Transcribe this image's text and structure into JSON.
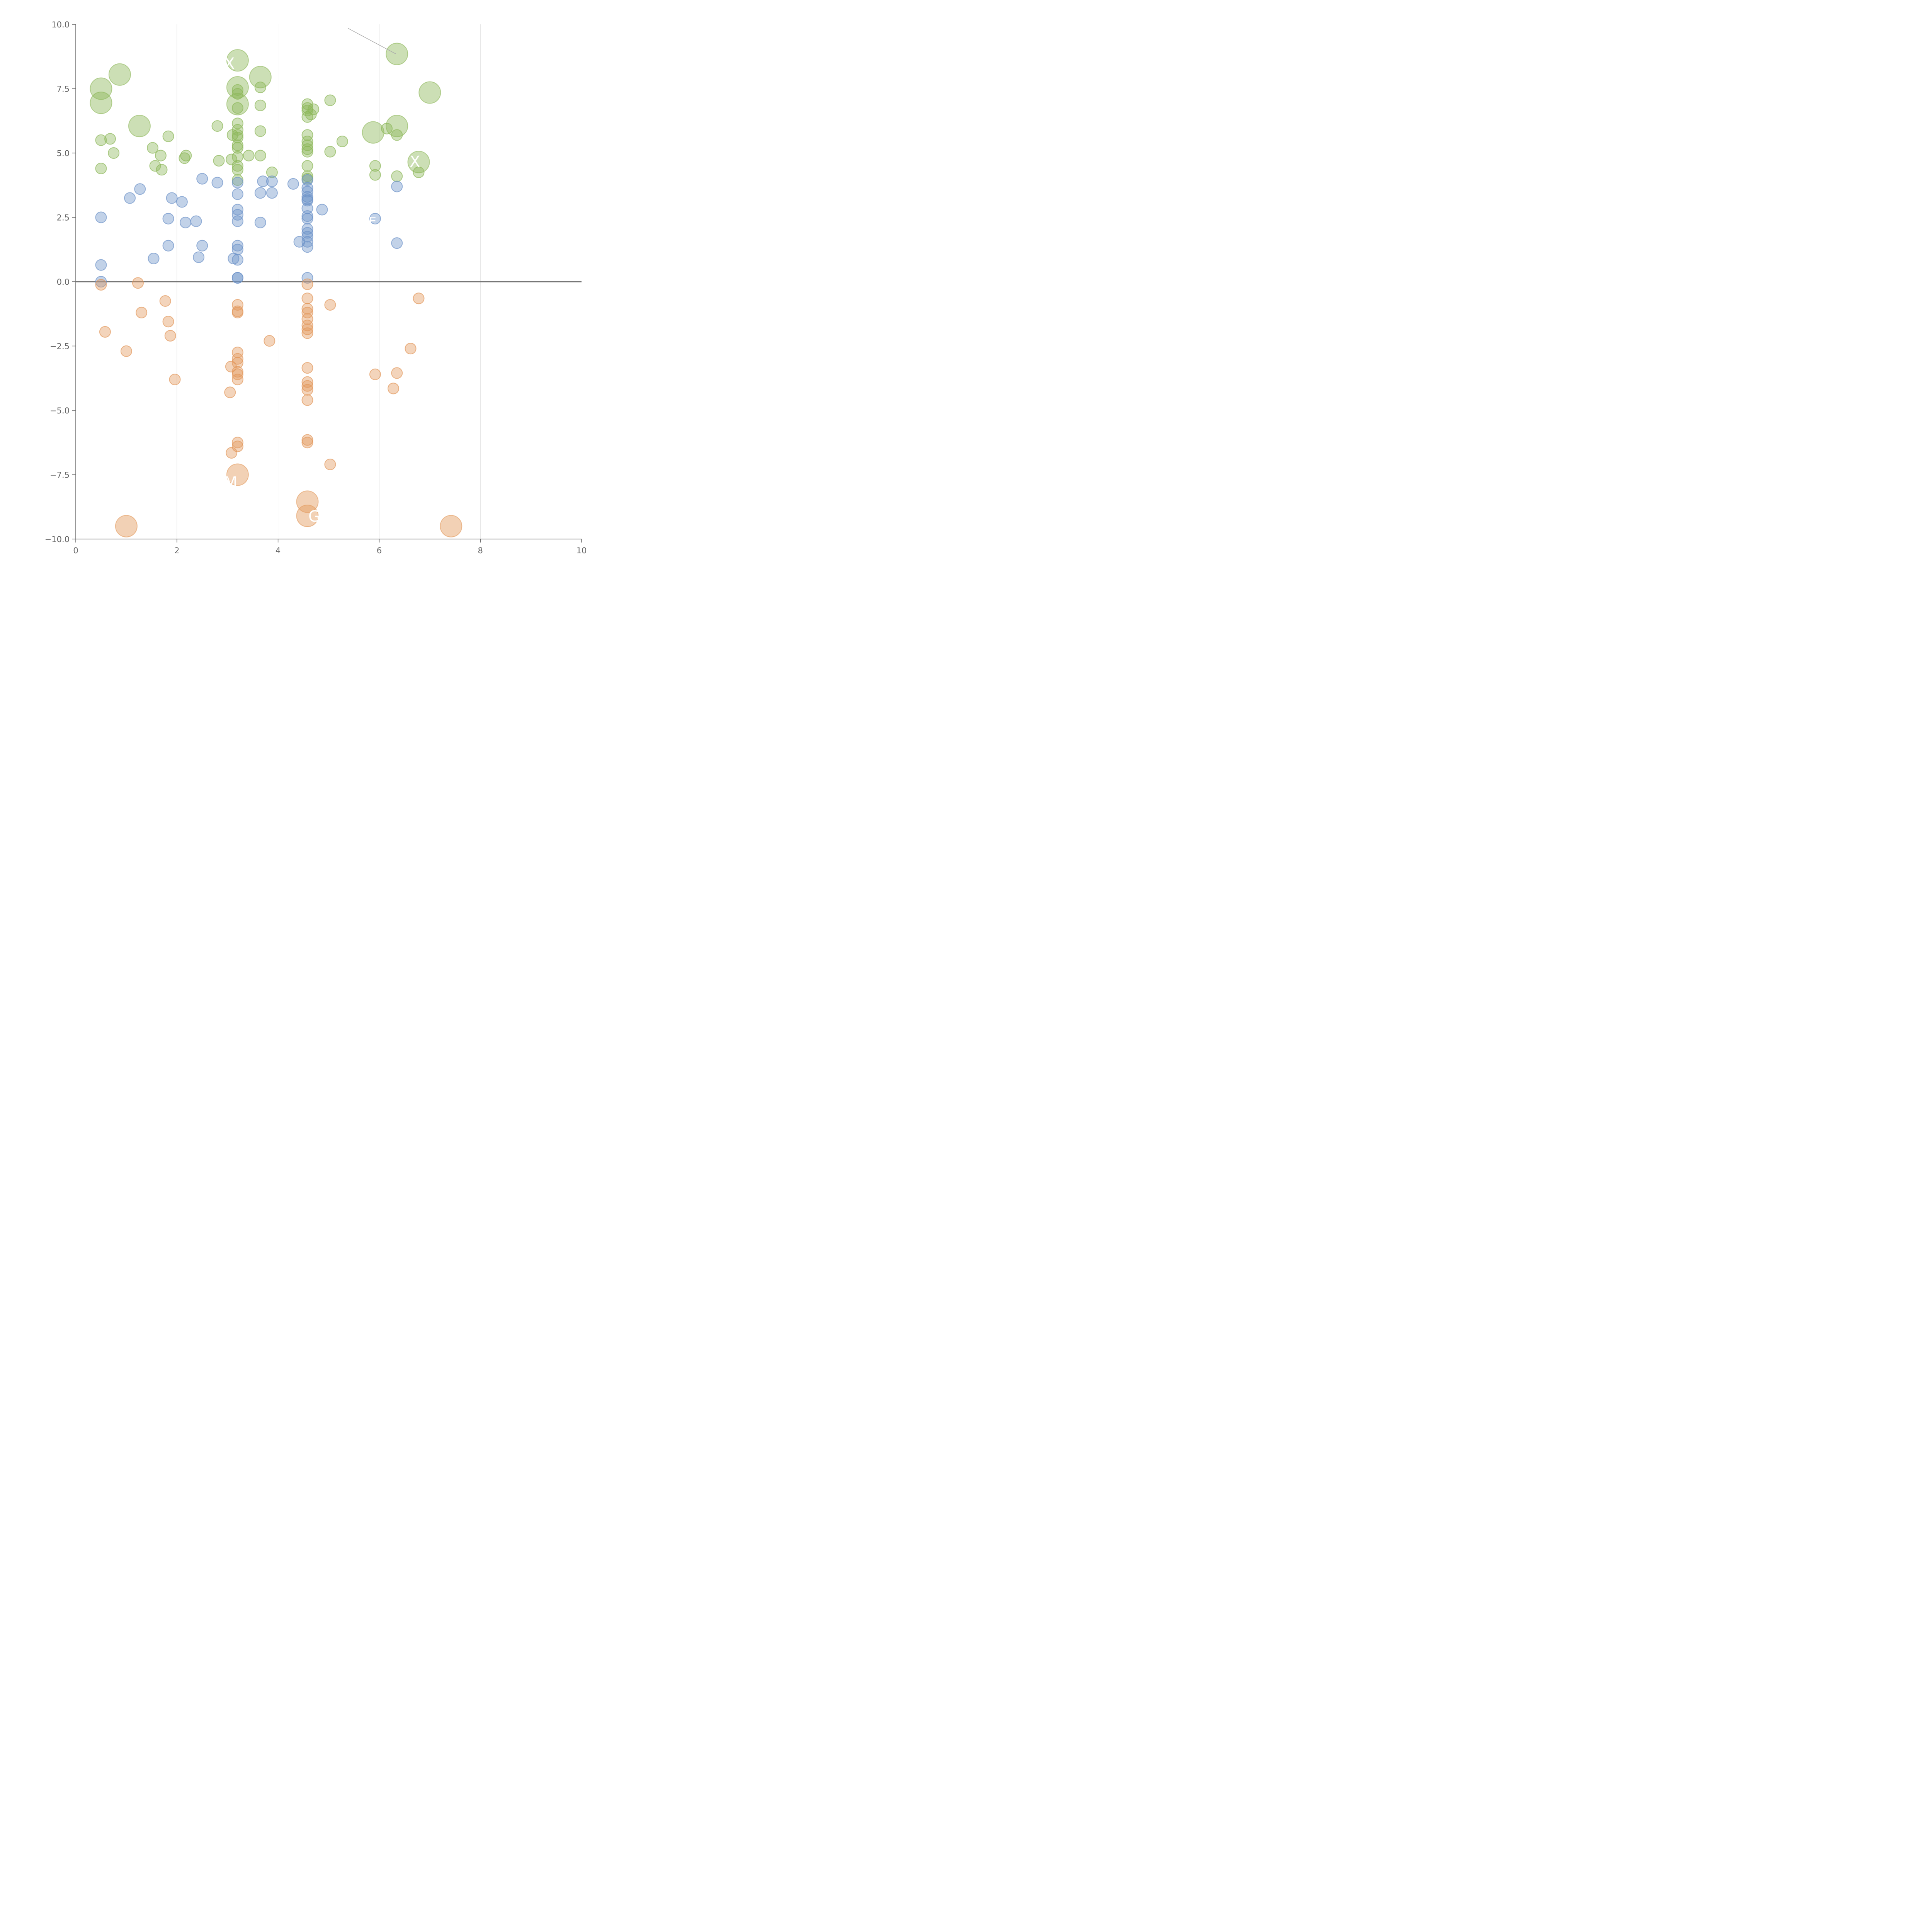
{
  "chart_data": {
    "type": "scatter",
    "title": "",
    "xlabel": "",
    "ylabel": "",
    "xlim": [
      0,
      10
    ],
    "ylim": [
      -10,
      10
    ],
    "xticks": [
      "0",
      "2",
      "4",
      "6",
      "8",
      "10"
    ],
    "yticks": [
      "10.0",
      "7.5",
      "5.0",
      "2.5",
      "0.0",
      "−2.5",
      "−5.0",
      "−7.5",
      "−10.0"
    ],
    "xtick_values": [
      0,
      2,
      4,
      6,
      8,
      10
    ],
    "ytick_values": [
      10,
      7.5,
      5,
      2.5,
      0,
      -2.5,
      -5,
      -7.5,
      -10
    ],
    "zero_line": 0,
    "grid": "vertical",
    "series": [
      {
        "name": "green",
        "color": "#8db85a",
        "points": [
          [
            0.5,
            5.5
          ],
          [
            0.5,
            4.4
          ],
          [
            0.68,
            5.55
          ],
          [
            0.75,
            5.0
          ],
          [
            1.52,
            5.2
          ],
          [
            1.57,
            4.5
          ],
          [
            1.68,
            4.9
          ],
          [
            1.7,
            4.35
          ],
          [
            1.83,
            5.65
          ],
          [
            2.15,
            4.8
          ],
          [
            2.18,
            4.9
          ],
          [
            2.83,
            4.7
          ],
          [
            2.8,
            6.05
          ],
          [
            3.08,
            4.75
          ],
          [
            3.1,
            5.7
          ],
          [
            3.2,
            6.15
          ],
          [
            3.2,
            5.9
          ],
          [
            3.2,
            5.7
          ],
          [
            3.2,
            5.6
          ],
          [
            3.2,
            5.3
          ],
          [
            3.2,
            5.2
          ],
          [
            3.2,
            4.85
          ],
          [
            3.2,
            4.5
          ],
          [
            3.2,
            4.35
          ],
          [
            3.2,
            3.95
          ],
          [
            3.2,
            6.75
          ],
          [
            3.2,
            7.3
          ],
          [
            3.2,
            7.45
          ],
          [
            3.42,
            4.9
          ],
          [
            3.65,
            4.9
          ],
          [
            3.65,
            5.85
          ],
          [
            3.65,
            6.85
          ],
          [
            3.65,
            7.55
          ],
          [
            3.88,
            4.25
          ],
          [
            4.58,
            6.9
          ],
          [
            4.58,
            6.75
          ],
          [
            4.58,
            6.65
          ],
          [
            4.58,
            6.4
          ],
          [
            4.58,
            5.7
          ],
          [
            4.58,
            5.45
          ],
          [
            4.58,
            5.3
          ],
          [
            4.58,
            5.15
          ],
          [
            4.58,
            5.05
          ],
          [
            4.58,
            4.5
          ],
          [
            4.58,
            4.1
          ],
          [
            4.58,
            4.0
          ],
          [
            4.65,
            6.5
          ],
          [
            4.7,
            6.7
          ],
          [
            5.03,
            7.05
          ],
          [
            5.03,
            5.05
          ],
          [
            5.27,
            5.45
          ],
          [
            5.92,
            4.5
          ],
          [
            5.92,
            4.15
          ],
          [
            6.15,
            5.95
          ],
          [
            6.35,
            5.7
          ],
          [
            6.35,
            4.1
          ],
          [
            6.78,
            4.25
          ]
        ],
        "large_points": [
          [
            0.5,
            7.5
          ],
          [
            0.5,
            6.95
          ],
          [
            0.87,
            8.05
          ],
          [
            1.26,
            6.05
          ],
          [
            3.2,
            8.6
          ],
          [
            3.2,
            7.55
          ],
          [
            3.2,
            6.9
          ],
          [
            3.65,
            7.95
          ],
          [
            5.88,
            5.8
          ],
          [
            6.35,
            6.05
          ],
          [
            6.35,
            8.85
          ],
          [
            6.78,
            4.65
          ],
          [
            7.0,
            7.35
          ]
        ]
      },
      {
        "name": "blue",
        "color": "#6e93c9",
        "points": [
          [
            0.5,
            2.5
          ],
          [
            0.5,
            0.65
          ],
          [
            0.5,
            0.0
          ],
          [
            1.07,
            3.25
          ],
          [
            1.27,
            3.6
          ],
          [
            1.54,
            0.9
          ],
          [
            1.83,
            2.45
          ],
          [
            1.83,
            1.4
          ],
          [
            1.9,
            3.25
          ],
          [
            2.1,
            3.1
          ],
          [
            2.17,
            2.3
          ],
          [
            2.38,
            2.35
          ],
          [
            2.43,
            0.95
          ],
          [
            2.5,
            4.0
          ],
          [
            2.5,
            1.4
          ],
          [
            2.8,
            3.85
          ],
          [
            3.12,
            0.9
          ],
          [
            3.2,
            3.85
          ],
          [
            3.2,
            3.4
          ],
          [
            3.2,
            2.8
          ],
          [
            3.2,
            2.6
          ],
          [
            3.2,
            2.35
          ],
          [
            3.2,
            1.4
          ],
          [
            3.2,
            1.25
          ],
          [
            3.2,
            0.85
          ],
          [
            3.2,
            0.15
          ],
          [
            3.2,
            0.15
          ],
          [
            3.65,
            3.45
          ],
          [
            3.65,
            2.3
          ],
          [
            3.7,
            3.9
          ],
          [
            3.88,
            3.9
          ],
          [
            3.88,
            3.45
          ],
          [
            4.3,
            3.8
          ],
          [
            4.42,
            1.55
          ],
          [
            4.58,
            3.95
          ],
          [
            4.58,
            3.65
          ],
          [
            4.58,
            3.5
          ],
          [
            4.58,
            3.3
          ],
          [
            4.58,
            3.2
          ],
          [
            4.58,
            3.15
          ],
          [
            4.58,
            2.85
          ],
          [
            4.58,
            2.55
          ],
          [
            4.58,
            2.45
          ],
          [
            4.58,
            2.05
          ],
          [
            4.58,
            1.9
          ],
          [
            4.58,
            1.75
          ],
          [
            4.58,
            1.55
          ],
          [
            4.58,
            1.35
          ],
          [
            4.58,
            0.15
          ],
          [
            4.87,
            2.8
          ],
          [
            5.92,
            2.45
          ],
          [
            6.35,
            3.7
          ],
          [
            6.35,
            1.5
          ]
        ],
        "large_points": []
      },
      {
        "name": "orange",
        "color": "#e3995c",
        "points": [
          [
            0.5,
            -0.12
          ],
          [
            0.58,
            -1.95
          ],
          [
            1.0,
            -2.7
          ],
          [
            1.23,
            -0.05
          ],
          [
            1.3,
            -1.2
          ],
          [
            1.77,
            -0.75
          ],
          [
            1.83,
            -1.55
          ],
          [
            1.87,
            -2.1
          ],
          [
            1.96,
            -3.8
          ],
          [
            3.07,
            -3.3
          ],
          [
            3.05,
            -4.3
          ],
          [
            3.08,
            -6.65
          ],
          [
            3.2,
            -0.9
          ],
          [
            3.2,
            -1.15
          ],
          [
            3.2,
            -1.2
          ],
          [
            3.2,
            -2.75
          ],
          [
            3.2,
            -3.0
          ],
          [
            3.2,
            -3.15
          ],
          [
            3.2,
            -3.5
          ],
          [
            3.2,
            -3.6
          ],
          [
            3.2,
            -3.8
          ],
          [
            3.2,
            -6.25
          ],
          [
            3.2,
            -6.4
          ],
          [
            3.83,
            -2.3
          ],
          [
            4.58,
            -0.1
          ],
          [
            4.58,
            -0.65
          ],
          [
            4.58,
            -1.05
          ],
          [
            4.58,
            -1.2
          ],
          [
            4.58,
            -1.45
          ],
          [
            4.58,
            -1.7
          ],
          [
            4.58,
            -1.85
          ],
          [
            4.58,
            -2.0
          ],
          [
            4.58,
            -3.35
          ],
          [
            4.58,
            -3.9
          ],
          [
            4.58,
            -4.05
          ],
          [
            4.58,
            -4.2
          ],
          [
            4.58,
            -4.6
          ],
          [
            4.58,
            -6.15
          ],
          [
            4.58,
            -6.25
          ],
          [
            5.03,
            -0.9
          ],
          [
            5.03,
            -7.1
          ],
          [
            5.92,
            -3.6
          ],
          [
            6.28,
            -4.15
          ],
          [
            6.35,
            -3.55
          ],
          [
            6.62,
            -2.6
          ],
          [
            6.78,
            -0.65
          ]
        ],
        "large_points": [
          [
            1.0,
            -9.5
          ],
          [
            3.2,
            -7.5
          ],
          [
            4.58,
            -8.55
          ],
          [
            4.58,
            -9.1
          ],
          [
            7.42,
            -9.5
          ]
        ]
      }
    ],
    "annotations": [
      "X",
      "X",
      "M",
      "G",
      "E"
    ],
    "leader_line": {
      "from": [
        5.38,
        9.85
      ],
      "to": [
        6.33,
        8.85
      ]
    }
  }
}
